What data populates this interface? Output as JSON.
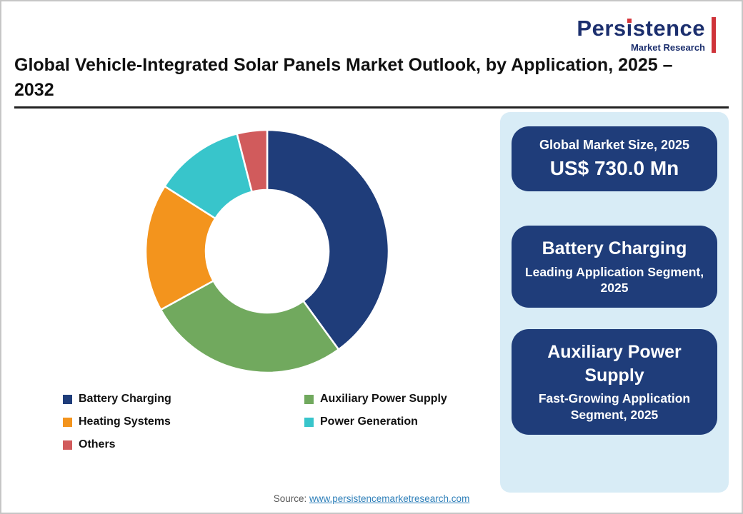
{
  "header": {
    "title": "Global Vehicle-Integrated Solar Panels Market Outlook, by Application, 2025 – 2032",
    "logo": {
      "brand_pre": "Pers",
      "brand_i": "ı",
      "brand_post": "stence",
      "subtitle": "Market Research"
    }
  },
  "chart_data": {
    "type": "pie",
    "subtype": "donut",
    "title": "Global Vehicle-Integrated Solar Panels Market Outlook, by Application, 2025 – 2032",
    "categories": [
      "Battery Charging",
      "Auxiliary Power Supply",
      "Heating Systems",
      "Power Generation",
      "Others"
    ],
    "values": [
      40,
      27,
      17,
      12,
      4
    ],
    "unit": "% share (estimated from arc angles)",
    "colors": [
      "#1f3d7a",
      "#71a95e",
      "#f3941d",
      "#38c5cb",
      "#d15b5c"
    ],
    "legend_position": "bottom",
    "donut_hole_ratio": 0.5,
    "start_angle": "top, clockwise"
  },
  "sidebar": {
    "cards": [
      {
        "line1": "Global Market Size, 2025",
        "line2": "US$ 730.0 Mn"
      },
      {
        "line1": "Battery Charging",
        "line2": "Leading Application Segment, 2025"
      },
      {
        "line1": "Auxiliary Power Supply",
        "line2": "Fast-Growing Application Segment, 2025"
      }
    ]
  },
  "footer": {
    "source_label": "Source:",
    "source_link": "www.persistencemarketresearch.com"
  }
}
